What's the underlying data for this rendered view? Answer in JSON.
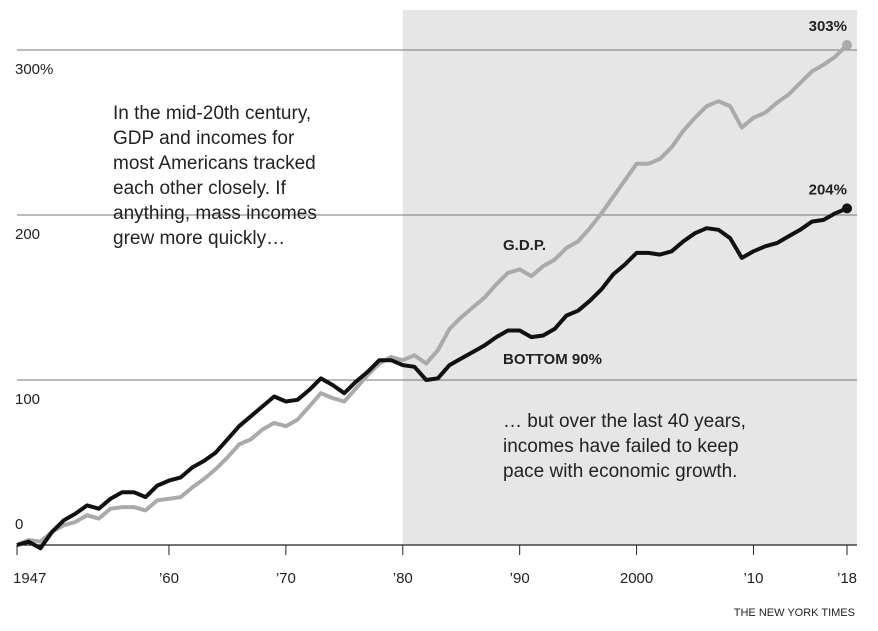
{
  "chart_data": {
    "type": "line",
    "x": [
      1947,
      1948,
      1949,
      1950,
      1951,
      1952,
      1953,
      1954,
      1955,
      1956,
      1957,
      1958,
      1959,
      1960,
      1961,
      1962,
      1963,
      1964,
      1965,
      1966,
      1967,
      1968,
      1969,
      1970,
      1971,
      1972,
      1973,
      1974,
      1975,
      1976,
      1977,
      1978,
      1979,
      1980,
      1981,
      1982,
      1983,
      1984,
      1985,
      1986,
      1987,
      1988,
      1989,
      1990,
      1991,
      1992,
      1993,
      1994,
      1995,
      1996,
      1997,
      1998,
      1999,
      2000,
      2001,
      2002,
      2003,
      2004,
      2005,
      2006,
      2007,
      2008,
      2009,
      2010,
      2011,
      2012,
      2013,
      2014,
      2015,
      2016,
      2017,
      2018
    ],
    "series": [
      {
        "name": "G.D.P.",
        "color": "#aaaaaa",
        "values": [
          0,
          3,
          2,
          8,
          12,
          14,
          18,
          16,
          22,
          23,
          23,
          21,
          27,
          28,
          29,
          35,
          40,
          46,
          53,
          61,
          64,
          70,
          74,
          72,
          76,
          84,
          92,
          89,
          87,
          95,
          103,
          110,
          114,
          112,
          115,
          110,
          118,
          131,
          138,
          144,
          150,
          158,
          165,
          167,
          163,
          169,
          173,
          180,
          184,
          192,
          201,
          211,
          221,
          231,
          231,
          234,
          241,
          251,
          259,
          266,
          269,
          266,
          253,
          259,
          262,
          268,
          273,
          280,
          287,
          291,
          296,
          303
        ],
        "value_labels": [
          null,
          null,
          null,
          null,
          null,
          null,
          null,
          null,
          null,
          null,
          null,
          null,
          null,
          null,
          null,
          null,
          null,
          null,
          null,
          null,
          null,
          null,
          null,
          null,
          null,
          null,
          null,
          null,
          null,
          null,
          null,
          null,
          null,
          null,
          null,
          null,
          null,
          null,
          null,
          null,
          null,
          null,
          null,
          null,
          null,
          null,
          null,
          null,
          null,
          null,
          null,
          null,
          null,
          null,
          null,
          null,
          null,
          null,
          null,
          null,
          null,
          null,
          null,
          null,
          null,
          null,
          null,
          null,
          null,
          null,
          null,
          "303%"
        ]
      },
      {
        "name": "BOTTOM 90%",
        "color": "#111111",
        "values": [
          0,
          2,
          -2,
          8,
          15,
          19,
          24,
          22,
          28,
          32,
          32,
          29,
          36,
          39,
          41,
          47,
          51,
          56,
          64,
          72,
          78,
          84,
          90,
          87,
          88,
          94,
          101,
          97,
          92,
          99,
          105,
          112,
          112,
          109,
          108,
          100,
          101,
          109,
          113,
          117,
          121,
          126,
          130,
          130,
          126,
          127,
          131,
          139,
          142,
          148,
          155,
          164,
          170,
          177,
          177,
          176,
          178,
          184,
          189,
          192,
          191,
          186,
          174,
          178,
          181,
          183,
          187,
          191,
          196,
          197,
          201,
          204
        ],
        "value_labels": [
          null,
          null,
          null,
          null,
          null,
          null,
          null,
          null,
          null,
          null,
          null,
          null,
          null,
          null,
          null,
          null,
          null,
          null,
          null,
          null,
          null,
          null,
          null,
          null,
          null,
          null,
          null,
          null,
          null,
          null,
          null,
          null,
          null,
          null,
          null,
          null,
          null,
          null,
          null,
          null,
          null,
          null,
          null,
          null,
          null,
          null,
          null,
          null,
          null,
          null,
          null,
          null,
          null,
          null,
          null,
          null,
          null,
          null,
          null,
          null,
          null,
          null,
          null,
          null,
          null,
          null,
          null,
          null,
          null,
          null,
          null,
          "204%"
        ]
      }
    ],
    "xlim": [
      1947,
      2018
    ],
    "xticks": [
      {
        "value": 1947,
        "label": "1947"
      },
      {
        "value": 1960,
        "label": "’60"
      },
      {
        "value": 1970,
        "label": "’70"
      },
      {
        "value": 1980,
        "label": "’80"
      },
      {
        "value": 1990,
        "label": "’90"
      },
      2000,
      {
        "value": 2010,
        "label": "’10"
      },
      {
        "value": 2018,
        "label": "’18"
      }
    ],
    "ylim": [
      0,
      320
    ],
    "yticks": [
      {
        "value": 300,
        "label": "300%"
      },
      200,
      100,
      0
    ],
    "grid": true,
    "shade_start": 1980,
    "annotations": [
      {
        "lines": [
          "In the mid-20th century,",
          "GDP and incomes for",
          "most Americans tracked",
          "each other closely. If",
          "anything, mass incomes",
          "grew more quickly…"
        ]
      },
      {
        "lines": [
          "… but over the last 40 years,",
          "incomes have failed to keep",
          "pace with economic growth."
        ]
      }
    ],
    "source": "THE NEW YORK TIMES"
  }
}
